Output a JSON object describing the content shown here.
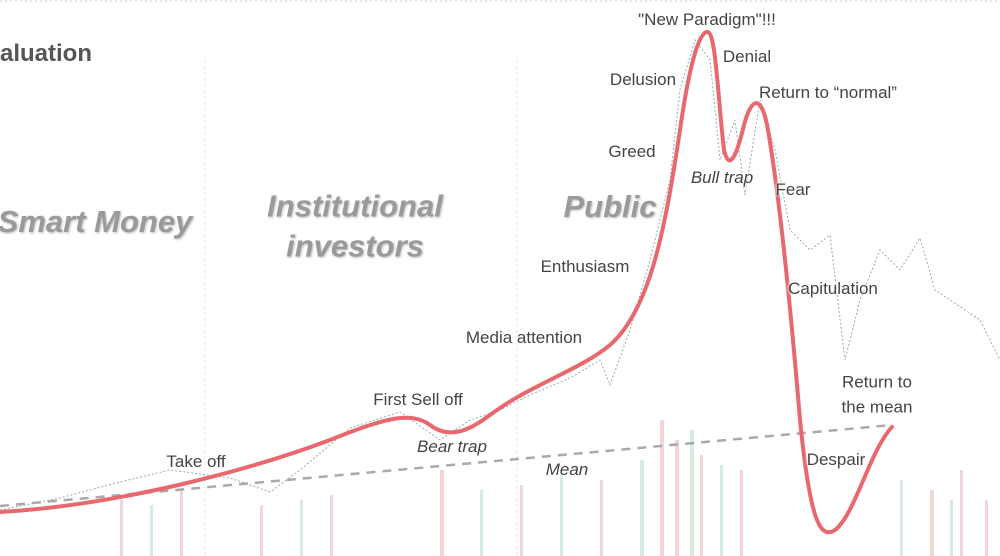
{
  "header": {
    "title": "aluation"
  },
  "zones": [
    "Smart Money",
    "Institutional investors",
    "Public"
  ],
  "labels": [
    "\"New Paradigm\"!!!",
    "Denial",
    "Delusion",
    "Return to “normal”",
    "Greed",
    "Bull trap",
    "Fear",
    "Enthusiasm",
    "Capitulation",
    "Media attention",
    "Return to the mean",
    "First Sell off",
    "Bear trap",
    "Take off",
    "Mean",
    "Despair"
  ]
}
